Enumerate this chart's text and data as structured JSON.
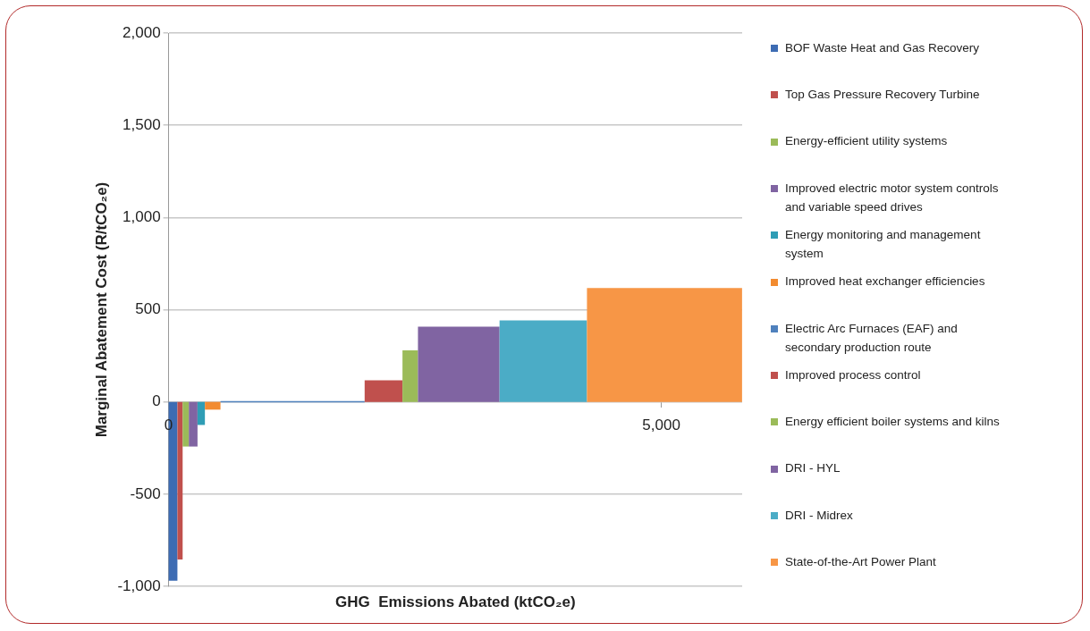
{
  "chart_data": {
    "type": "histogram",
    "xlabel": "GHG  Emissions Abated (ktCO₂e)",
    "ylabel": "Marginal Abatement Cost (R/tCO₂e)",
    "xlim": [
      0,
      5820
    ],
    "xticks": [
      0,
      {
        "value": 5000,
        "label": "5,000"
      }
    ],
    "ylim": [
      -1000,
      2000
    ],
    "yticks": [
      {
        "value": -1000,
        "label": "-1,000"
      },
      -500,
      0,
      500,
      {
        "value": 1000,
        "label": "1,000"
      },
      {
        "value": 1500,
        "label": "1,500"
      },
      {
        "value": 2000,
        "label": "2,000"
      }
    ],
    "grid": "y",
    "bins": [
      0,
      89,
      142,
      205,
      293,
      368,
      526,
      1989,
      2373,
      2530,
      3358,
      4245,
      5819
    ],
    "values": [
      -970,
      -855,
      -242,
      -242,
      -125,
      -42,
      5,
      117,
      280,
      408,
      442,
      617
    ],
    "categories": [
      "BOF Waste Heat and Gas Recovery",
      "Top Gas Pressure Recovery Turbine",
      "Energy-efficient utility systems",
      "Improved electric motor system controls and variable speed drives",
      "Energy monitoring and management system",
      "Improved heat exchanger efficiencies",
      "Electric Arc Furnaces (EAF) and secondary production route",
      "Improved process control",
      "Energy efficient boiler systems and kilns",
      "DRI - HYL",
      "DRI - Midrex",
      "State-of-the-Art Power Plant"
    ],
    "colors": [
      "#3d6cb3",
      "#c0504d",
      "#9bbb59",
      "#8064a2",
      "#2f9db5",
      "#f28b30",
      "#4f81bd",
      "#c0504d",
      "#9bbb59",
      "#8064a2",
      "#4bacc6",
      "#f79646"
    ]
  }
}
